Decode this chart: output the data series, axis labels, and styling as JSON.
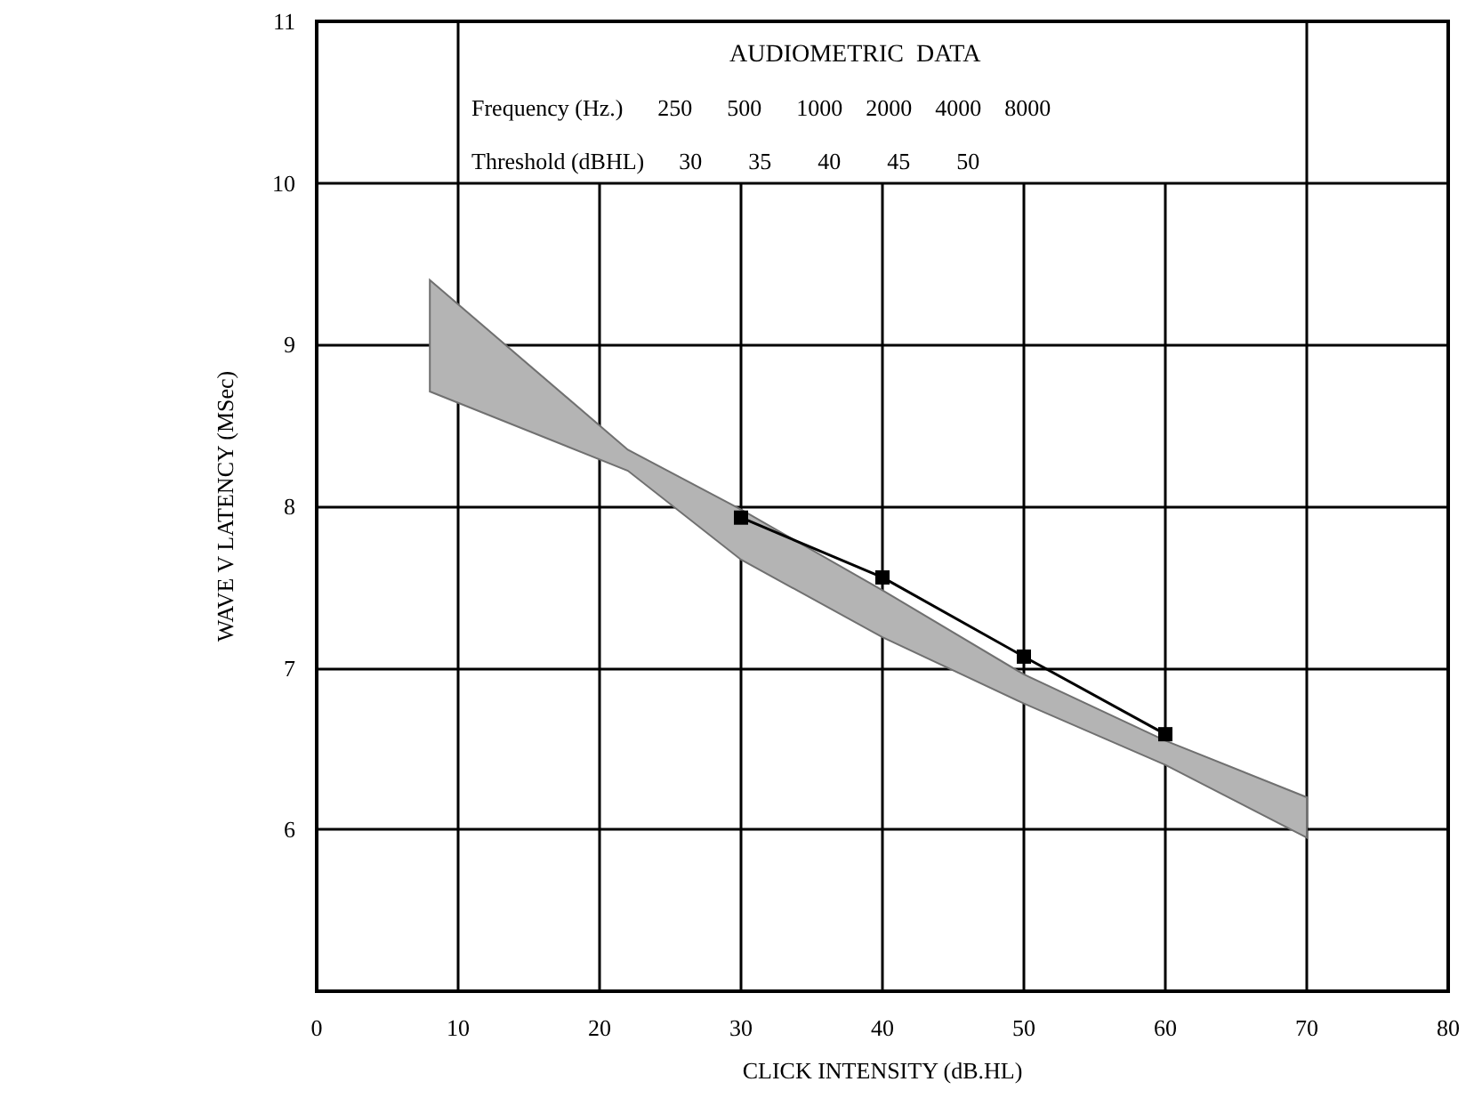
{
  "chart_data": {
    "type": "line",
    "xlabel": "CLICK INTENSITY (dB.HL)",
    "ylabel": "WAVE V LATENCY (MSec)",
    "xlim": [
      0,
      80
    ],
    "xticks": [
      0,
      10,
      20,
      30,
      40,
      50,
      60,
      70,
      80
    ],
    "ylim": [
      5,
      11
    ],
    "yticks": [
      6,
      7,
      8,
      9,
      10,
      11
    ],
    "grid": true,
    "series": [
      {
        "type": "area",
        "color": "#b4b4b4",
        "x": [
          8,
          22,
          30,
          40,
          50,
          60,
          70
        ],
        "values": [
          null,
          null,
          null,
          null,
          null,
          null,
          null
        ],
        "lower": [
          8.71,
          8.22,
          7.67,
          7.19,
          6.78,
          6.4,
          5.95
        ],
        "upper": [
          9.4,
          8.35,
          7.98,
          7.48,
          6.96,
          6.55,
          6.2
        ]
      },
      {
        "color": "#000000",
        "marker": "square",
        "x": [
          30,
          40,
          50,
          60
        ],
        "values": [
          7.93,
          7.56,
          7.07,
          6.59
        ]
      }
    ],
    "annotations": [
      "AUDIOMETRIC  DATA",
      "Frequency (Hz.)      250      500      1000    2000    4000    8000",
      "Threshold (dBHL)      30        35        40        45        50"
    ]
  }
}
